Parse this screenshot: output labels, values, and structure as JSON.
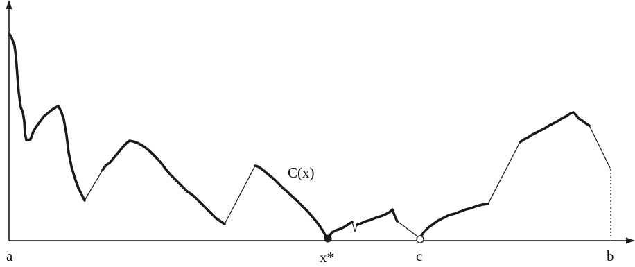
{
  "labels": {
    "curve": "C(x)",
    "left_end": "a",
    "minimum": "x*",
    "point_c": "c",
    "right_end": "b"
  },
  "colors": {
    "stroke": "#1a1a1a",
    "background": "#ffffff"
  }
}
